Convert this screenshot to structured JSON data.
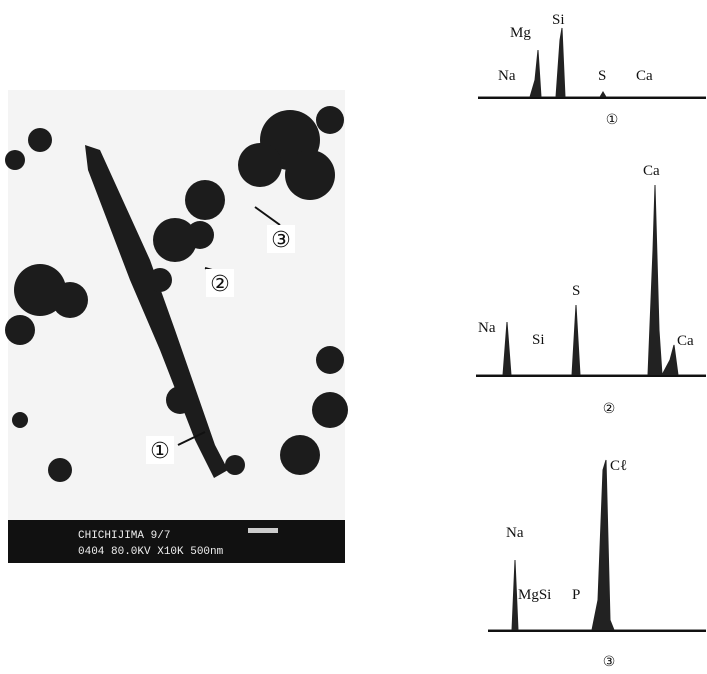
{
  "micrograph": {
    "markers": [
      "①",
      "②",
      "③"
    ],
    "info_bar": {
      "line1": "CHICHIJIMA 9/7",
      "line2": "0404 80.0KV X10K 500nm"
    }
  },
  "spectra": [
    {
      "label": "①",
      "elements": [
        "Na",
        "Mg",
        "Si",
        "S",
        "Ca"
      ]
    },
    {
      "label": "②",
      "elements": [
        "Na",
        "Si",
        "S",
        "Ca",
        "Ca"
      ]
    },
    {
      "label": "③",
      "elements": [
        "Na",
        "MgSi",
        "P",
        "Cℓ"
      ]
    }
  ]
}
